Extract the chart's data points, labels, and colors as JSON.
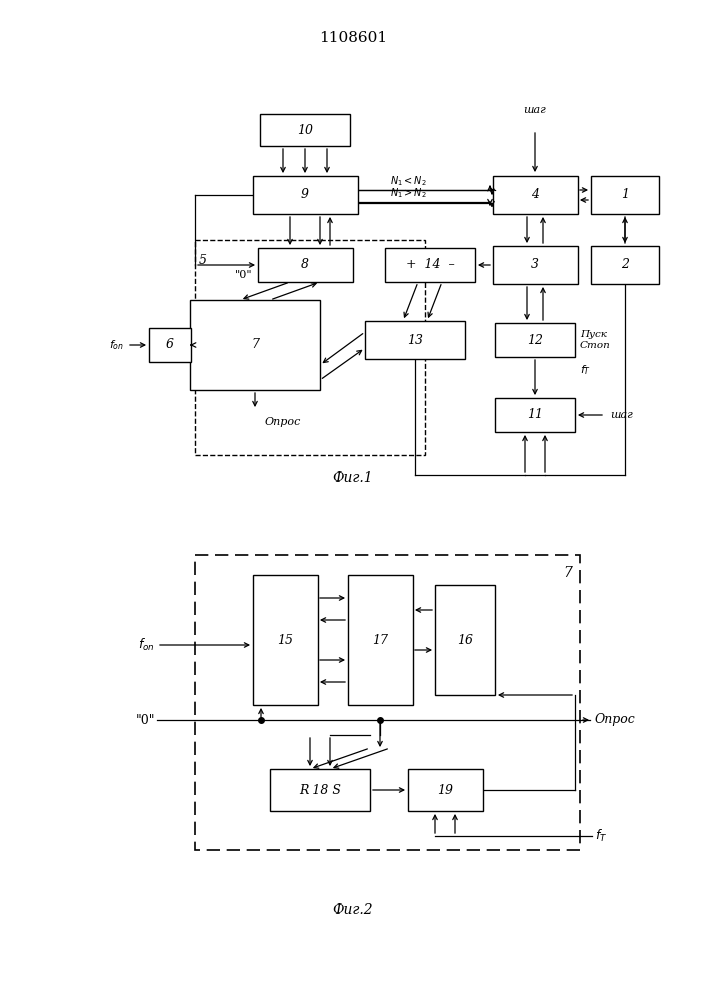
{
  "title": "1108601",
  "fig1_caption": "Фиг.1",
  "fig2_caption": "Фиг.2",
  "background": "#ffffff"
}
